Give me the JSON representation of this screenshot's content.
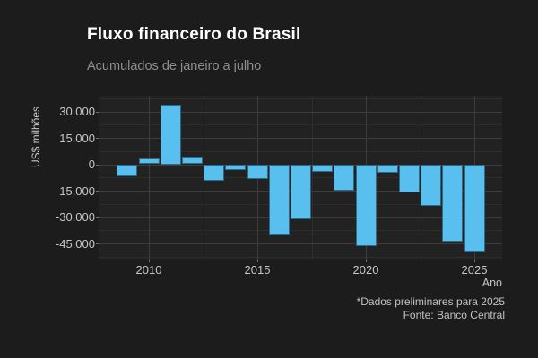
{
  "header": {
    "title": "Fluxo financeiro do Brasil",
    "subtitle": "Acumulados de janeiro a julho"
  },
  "chart_data": {
    "type": "bar",
    "title": "Fluxo financeiro do Brasil",
    "subtitle": "Acumulados de janeiro a julho",
    "xlabel": "Ano",
    "ylabel": "US$ milhões",
    "x": [
      2009,
      2010,
      2011,
      2012,
      2013,
      2014,
      2015,
      2016,
      2017,
      2018,
      2019,
      2020,
      2021,
      2022,
      2023,
      2024,
      2025
    ],
    "values": [
      -7000,
      3500,
      33800,
      4200,
      -9600,
      -3400,
      -8300,
      -40500,
      -31000,
      -4100,
      -14800,
      -46700,
      -5000,
      -16200,
      -23400,
      -44200,
      -50000
    ],
    "ylim": [
      -55000,
      38900
    ],
    "xlim": [
      2007.7,
      2026.3
    ],
    "y_ticks_major": [
      30000,
      15000,
      0,
      -15000,
      -30000,
      -45000
    ],
    "y_tick_labels": [
      "30.000",
      "15.000",
      "0",
      "-15.000",
      "-30.000",
      "-45.000"
    ],
    "y_ticks_minor": [
      37500,
      22500,
      7500,
      -7500,
      -22500,
      -37500,
      -52500
    ],
    "x_ticks_major": [
      2010,
      2015,
      2020,
      2025
    ],
    "x_tick_labels": [
      "2010",
      "2015",
      "2020",
      "2025"
    ],
    "x_ticks_minor": [
      2012.5,
      2017.5,
      2022.5
    ],
    "grid": true,
    "legend": "none",
    "bar_color": "#58bfee",
    "background_color": "#1c1c1c",
    "panel_color": "#222222",
    "caption": {
      "line1": "*Dados preliminares para 2025",
      "line2": "Fonte: Banco Central"
    }
  }
}
